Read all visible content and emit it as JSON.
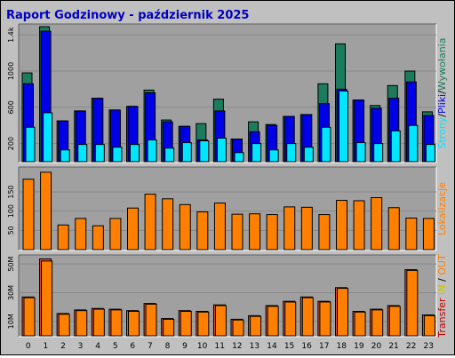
{
  "title": "Raport Godzinowy -  październik 2025",
  "colors": {
    "background": "#c0c0c0",
    "plot_bg": "#a0a0a0",
    "title": "#0000c0",
    "hits": "#1c7b5c",
    "files": "#0000e6",
    "pages": "#00e6ff",
    "visits": "#ff8000",
    "in": "#ff8000",
    "out": "#e6503c",
    "transfer_label": "#c00000",
    "in_label": "#c8c800",
    "out_label": "#ff8000"
  },
  "chart_data": [
    {
      "type": "bar",
      "id": "hits-files-pages",
      "categories": [
        "0",
        "1",
        "2",
        "3",
        "4",
        "5",
        "6",
        "7",
        "8",
        "9",
        "10",
        "11",
        "12",
        "13",
        "14",
        "15",
        "16",
        "17",
        "18",
        "19",
        "20",
        "21",
        "22",
        "23"
      ],
      "ylim": [
        0,
        1500
      ],
      "yticks": [
        200,
        600,
        1000,
        1400
      ],
      "ytick_labels": [
        "200",
        "600",
        "1000",
        "1.4k"
      ],
      "legend": [
        "Strony",
        "Pliki",
        "Wywołania"
      ],
      "legend_separators": [
        "/",
        "/"
      ],
      "series": [
        {
          "name": "Wywołania",
          "values": [
            980,
            1490,
            450,
            560,
            700,
            570,
            610,
            790,
            460,
            390,
            420,
            690,
            250,
            440,
            410,
            500,
            520,
            860,
            1300,
            680,
            620,
            840,
            1000,
            550
          ]
        },
        {
          "name": "Pliki",
          "values": [
            860,
            1440,
            450,
            560,
            700,
            570,
            610,
            760,
            440,
            390,
            240,
            560,
            250,
            330,
            400,
            500,
            520,
            640,
            800,
            680,
            590,
            700,
            880,
            510
          ]
        },
        {
          "name": "Strony",
          "values": [
            380,
            540,
            130,
            190,
            190,
            160,
            190,
            240,
            150,
            210,
            230,
            260,
            100,
            200,
            130,
            200,
            160,
            380,
            780,
            210,
            200,
            340,
            400,
            190
          ]
        }
      ]
    },
    {
      "type": "bar",
      "id": "visits",
      "categories": [
        "0",
        "1",
        "2",
        "3",
        "4",
        "5",
        "6",
        "7",
        "8",
        "9",
        "10",
        "11",
        "12",
        "13",
        "14",
        "15",
        "16",
        "17",
        "18",
        "19",
        "20",
        "21",
        "22",
        "23"
      ],
      "ylim": [
        0,
        210
      ],
      "yticks": [
        50,
        100,
        150
      ],
      "ytick_labels": [
        "50",
        "100",
        "150"
      ],
      "legend": [
        "Lokalizacje"
      ],
      "series": [
        {
          "name": "Lokalizacje",
          "values": [
            183,
            201,
            64,
            81,
            62,
            81,
            108,
            144,
            132,
            117,
            98,
            121,
            92,
            93,
            91,
            111,
            110,
            91,
            128,
            127,
            135,
            109,
            82,
            81
          ]
        }
      ]
    },
    {
      "type": "bar",
      "id": "transfer",
      "categories": [
        "0",
        "1",
        "2",
        "3",
        "4",
        "5",
        "6",
        "7",
        "8",
        "9",
        "10",
        "11",
        "12",
        "13",
        "14",
        "15",
        "16",
        "17",
        "18",
        "19",
        "20",
        "21",
        "22",
        "23"
      ],
      "ylim": [
        0,
        55
      ],
      "ylabel_unit": "M",
      "yticks": [
        10,
        30,
        50
      ],
      "ytick_labels": [
        "10M",
        "30M",
        "50M"
      ],
      "legend": [
        "Transfer",
        "IN",
        "OUT"
      ],
      "legend_separators": [
        " ",
        " / "
      ],
      "series": [
        {
          "name": "IN",
          "values": [
            27,
            53.5,
            15.5,
            18,
            19,
            18.5,
            17.5,
            22.5,
            12,
            17.5,
            17,
            21.5,
            11.5,
            14,
            21,
            24,
            27,
            24,
            33.5,
            17,
            18.5,
            21,
            46,
            14.5
          ]
        },
        {
          "name": "OUT",
          "values": [
            26.5,
            52,
            15,
            17.5,
            18.5,
            18,
            17,
            22,
            11.5,
            17,
            16.5,
            21,
            11,
            13.5,
            20.5,
            23.5,
            26.5,
            23.5,
            33,
            16.5,
            18,
            20.5,
            45.5,
            14
          ]
        }
      ]
    }
  ]
}
